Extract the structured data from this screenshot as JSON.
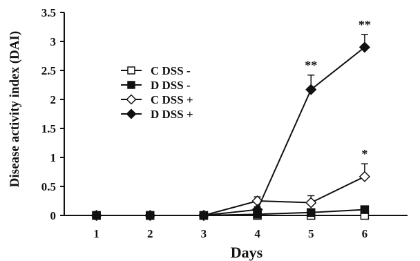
{
  "chart_data": {
    "type": "line",
    "title": "",
    "xlabel": "Days",
    "ylabel": "Disease activity index (DAI)",
    "x": [
      1,
      2,
      3,
      4,
      5,
      6
    ],
    "xlim": [
      0.4,
      6.8
    ],
    "ylim": [
      0,
      3.5
    ],
    "yticks": [
      0,
      0.5,
      1,
      1.5,
      2,
      2.5,
      3,
      3.5
    ],
    "ytick_labels": [
      "0",
      "0.5",
      "1",
      "1.5",
      "2",
      "2.5",
      "3",
      "3.5"
    ],
    "xtick_labels": [
      "1",
      "2",
      "3",
      "4",
      "5",
      "6"
    ],
    "grid": false,
    "legend_position": "upper-left",
    "series": [
      {
        "name": "C DSS -",
        "marker": "square-open",
        "values": [
          0,
          0,
          0,
          0,
          0,
          0
        ],
        "errors": [
          0,
          0,
          0,
          0,
          0,
          0
        ]
      },
      {
        "name": "D DSS -",
        "marker": "square-filled",
        "values": [
          0,
          0,
          0,
          0.02,
          0.05,
          0.1
        ],
        "errors": [
          0,
          0,
          0,
          0,
          0,
          0
        ]
      },
      {
        "name": "C DSS +",
        "marker": "diamond-open",
        "values": [
          0,
          0,
          0,
          0.25,
          0.22,
          0.67
        ],
        "errors": [
          0,
          0,
          0,
          0.07,
          0.12,
          0.22
        ]
      },
      {
        "name": "D DSS +",
        "marker": "diamond-filled",
        "values": [
          0,
          0,
          0,
          0.1,
          2.17,
          2.9
        ],
        "errors": [
          0,
          0,
          0,
          0.05,
          0.25,
          0.22
        ]
      }
    ],
    "annotations": [
      {
        "text": "**",
        "x": 5,
        "series": "D DSS +"
      },
      {
        "text": "**",
        "x": 6,
        "series": "D DSS +"
      },
      {
        "text": "*",
        "x": 6,
        "series": "C DSS +"
      }
    ]
  }
}
